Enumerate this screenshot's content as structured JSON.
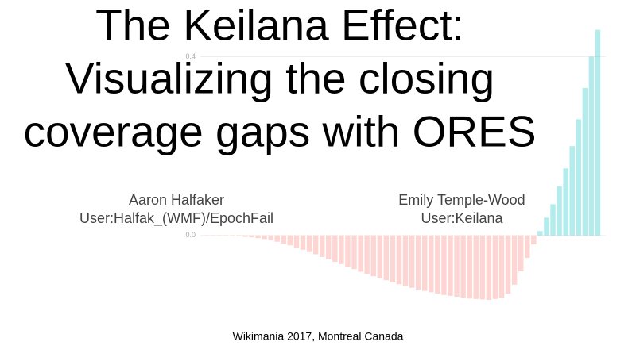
{
  "slide": {
    "title": [
      "The Keilana Effect:",
      "Visualizing the closing",
      "coverage gaps with ORES"
    ],
    "presenters": [
      {
        "name": "Aaron Halfaker",
        "user": "User:Halfak_(WMF)/EpochFail"
      },
      {
        "name": "Emily Temple-Wood",
        "user": "User:Keilana"
      }
    ],
    "footer": "Wikimania 2017, Montreal Canada"
  },
  "chart_data": {
    "type": "bar",
    "values": [
      -0.001,
      -0.001,
      -0.001,
      -0.002,
      -0.002,
      -0.002,
      -0.003,
      -0.004,
      -0.006,
      -0.008,
      -0.011,
      -0.014,
      -0.018,
      -0.022,
      -0.027,
      -0.032,
      -0.037,
      -0.042,
      -0.048,
      -0.053,
      -0.059,
      -0.064,
      -0.07,
      -0.075,
      -0.081,
      -0.086,
      -0.091,
      -0.096,
      -0.1,
      -0.105,
      -0.109,
      -0.113,
      -0.117,
      -0.121,
      -0.124,
      -0.127,
      -0.13,
      -0.133,
      -0.135,
      -0.137,
      -0.139,
      -0.141,
      -0.142,
      -0.143,
      -0.144,
      -0.142,
      -0.14,
      -0.13,
      -0.11,
      -0.08,
      -0.05,
      -0.02,
      0.01,
      0.04,
      0.07,
      0.11,
      0.15,
      0.2,
      0.26,
      0.33,
      0.4,
      0.46
    ],
    "positive_color": "#00bfc4",
    "negative_color": "#f8766d",
    "ylim": [
      -0.16,
      0.47
    ],
    "yticks": [
      {
        "value": 0,
        "label": "0.0"
      },
      0.4
    ],
    "grid": true
  }
}
